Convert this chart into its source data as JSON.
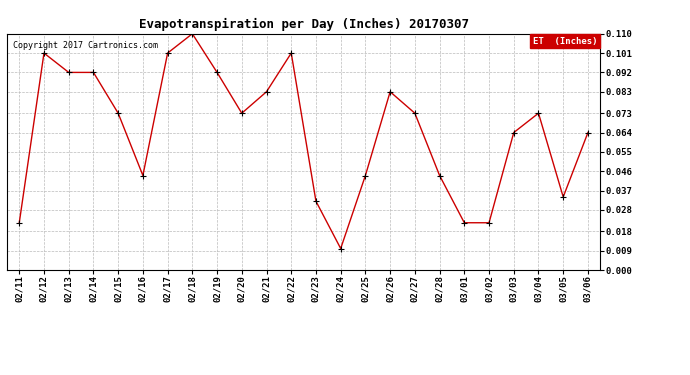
{
  "title": "Evapotranspiration per Day (Inches) 20170307",
  "copyright": "Copyright 2017 Cartronics.com",
  "legend_label": "ET  (Inches)",
  "x_labels": [
    "02/11",
    "02/12",
    "02/13",
    "02/14",
    "02/15",
    "02/16",
    "02/17",
    "02/18",
    "02/19",
    "02/20",
    "02/21",
    "02/22",
    "02/23",
    "02/24",
    "02/25",
    "02/26",
    "02/27",
    "02/28",
    "03/01",
    "03/02",
    "03/03",
    "03/04",
    "03/05",
    "03/06"
  ],
  "y_values": [
    0.022,
    0.101,
    0.092,
    0.092,
    0.073,
    0.044,
    0.101,
    0.11,
    0.092,
    0.073,
    0.083,
    0.101,
    0.032,
    0.01,
    0.044,
    0.083,
    0.073,
    0.044,
    0.022,
    0.022,
    0.064,
    0.073,
    0.034,
    0.064
  ],
  "line_color": "#cc0000",
  "marker_color": "#000000",
  "bg_color": "#ffffff",
  "grid_color": "#bbbbbb",
  "ylim": [
    0.0,
    0.11
  ],
  "yticks": [
    0.0,
    0.009,
    0.018,
    0.028,
    0.037,
    0.046,
    0.055,
    0.064,
    0.073,
    0.083,
    0.092,
    0.101,
    0.11
  ],
  "legend_bg": "#cc0000",
  "legend_text_color": "#ffffff",
  "title_fontsize": 9,
  "copyright_fontsize": 6,
  "tick_fontsize": 6.5,
  "legend_fontsize": 6.5,
  "line_width": 1.0,
  "marker_size": 4
}
